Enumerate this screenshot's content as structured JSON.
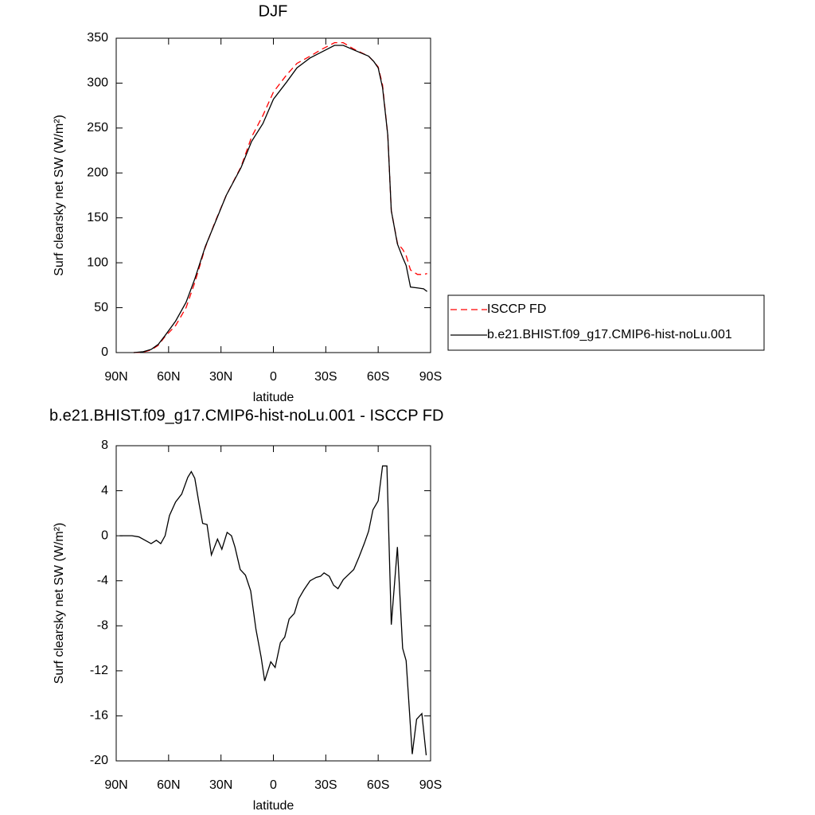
{
  "chart_data": [
    {
      "type": "line",
      "title": "DJF",
      "x_label": "latitude",
      "y_label": "Surf clearsky net SW (W/m²)",
      "x": [
        80,
        74.5,
        70,
        66,
        62,
        56,
        50,
        45,
        39,
        33.5,
        27,
        18.5,
        12.5,
        6,
        0,
        -7.5,
        -13.5,
        -21,
        -28,
        -35,
        -40,
        -46,
        -54.5,
        -57.5,
        -60,
        -62.5,
        -65.5,
        -67.5,
        -71,
        -74,
        -76,
        -78.5,
        -82.5,
        -86,
        -88
      ],
      "series": [
        {
          "name": "ISCCP FD",
          "color": "#ff0000",
          "line_style": "dashed",
          "values": [
            0,
            0.5,
            3,
            8,
            18,
            30,
            50,
            78,
            117,
            145,
            175,
            207,
            240,
            264,
            290,
            309,
            322,
            330,
            338,
            345,
            345,
            338,
            330,
            324,
            318,
            298,
            242,
            158,
            122,
            115,
            108,
            92,
            87,
            87,
            88
          ]
        },
        {
          "name": "b.e21.BHIST.f09_g17.CMIP6-hist-noLu.001",
          "color": "#000000",
          "line_style": "solid",
          "values": [
            0,
            1,
            3.5,
            9,
            19,
            35,
            56,
            82,
            118,
            144,
            175,
            206,
            235,
            255,
            282,
            301,
            317,
            328,
            335,
            342,
            342,
            337,
            330,
            324,
            317,
            295,
            242,
            158,
            121,
            106,
            97,
            73,
            72,
            71,
            68
          ]
        }
      ],
      "xlim": [
        90,
        -90
      ],
      "xticks": [
        {
          "value": 90,
          "label": "90N"
        },
        {
          "value": 60,
          "label": "60N"
        },
        {
          "value": 30,
          "label": "30N"
        },
        0,
        {
          "value": -30,
          "label": "30S"
        },
        {
          "value": -60,
          "label": "60S"
        },
        {
          "value": -90,
          "label": "90S"
        }
      ],
      "ylim": [
        0,
        350
      ],
      "yticks": [
        0,
        50,
        100,
        150,
        200,
        250,
        300,
        350
      ],
      "legend": "right"
    },
    {
      "type": "line",
      "title": "b.e21.BHIST.f09_g17.CMIP6-hist-noLu.001 - ISCCP FD",
      "x_label": "latitude",
      "y_label": "Surf clearsky net SW (W/m²)",
      "x": [
        88,
        81,
        77,
        70,
        67,
        64.5,
        62,
        59.5,
        56,
        52.5,
        49,
        47,
        45,
        42.5,
        40.5,
        38,
        35.5,
        32,
        29.5,
        26.5,
        24,
        22,
        19,
        16,
        13,
        10,
        7,
        5,
        1.5,
        -1,
        -4,
        -6.5,
        -9,
        -12,
        -14.5,
        -17.5,
        -21,
        -24.5,
        -27,
        -29,
        -32,
        -34.5,
        -37,
        -40,
        -42,
        -46,
        -49,
        -52,
        -54.5,
        -57,
        -60,
        -62.5,
        -65,
        -67.5,
        -71,
        -74,
        -76,
        -79.5,
        -82,
        -85,
        -87.5
      ],
      "values": [
        0,
        0,
        -0.1,
        -0.7,
        -0.4,
        -0.7,
        0,
        1.8,
        3.0,
        3.7,
        5.2,
        5.7,
        5.1,
        2.8,
        1.1,
        1.0,
        -1.7,
        -0.3,
        -1.2,
        0.3,
        0,
        -1.0,
        -3.0,
        -3.5,
        -4.9,
        -8.3,
        -10.8,
        -12.9,
        -11.2,
        -11.7,
        -9.5,
        -9.0,
        -7.4,
        -6.9,
        -5.6,
        -4.8,
        -4.0,
        -3.7,
        -3.6,
        -3.3,
        -3.6,
        -4.4,
        -4.7,
        -3.9,
        -3.6,
        -3.0,
        -1.9,
        -0.7,
        0.4,
        2.3,
        3.1,
        6.2,
        6.2,
        -7.9,
        -1.0,
        -10.0,
        -11.1,
        -19.4,
        -16.3,
        -15.8,
        -19.5
      ],
      "color": "#000000",
      "xlim": [
        90,
        -90
      ],
      "xticks": [
        {
          "value": 90,
          "label": "90N"
        },
        {
          "value": 60,
          "label": "60N"
        },
        {
          "value": 30,
          "label": "30N"
        },
        0,
        {
          "value": -30,
          "label": "30S"
        },
        {
          "value": -60,
          "label": "60S"
        },
        {
          "value": -90,
          "label": "90S"
        }
      ],
      "ylim": [
        -20,
        8
      ],
      "yticks": [
        -20,
        -16,
        -12,
        -8,
        -4,
        0,
        4,
        8
      ]
    }
  ]
}
